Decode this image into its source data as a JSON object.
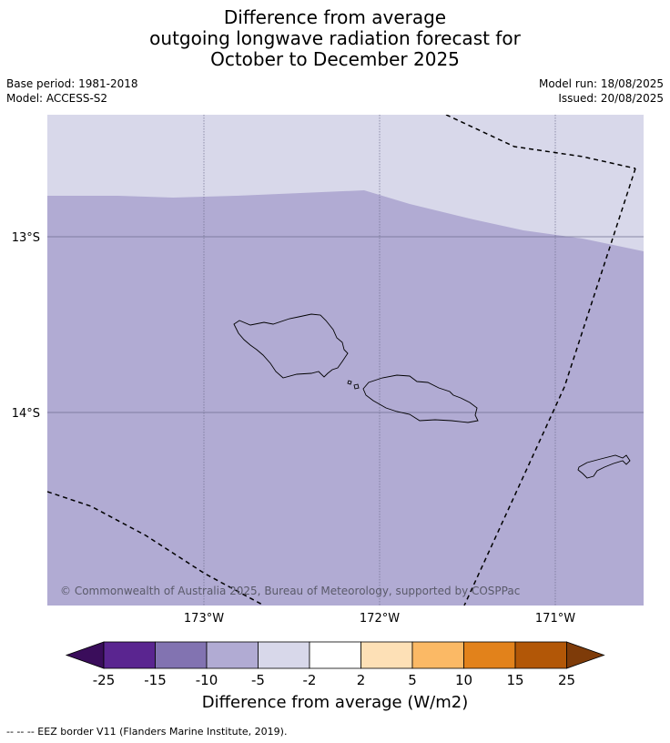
{
  "title_lines": [
    "Difference from average",
    "outgoing longwave radiation forecast for",
    "October to December 2025"
  ],
  "meta": {
    "base_period": "Base period: 1981-2018",
    "model": "Model: ACCESS-S2",
    "model_run": "Model run: 18/08/2025",
    "issued": "Issued: 20/08/2025"
  },
  "map": {
    "lat_labels": [
      "13°S",
      "14°S"
    ],
    "lon_labels": [
      "173°W",
      "172°W",
      "171°W"
    ],
    "copyright": "© Commonwealth of Australia 2025, Bureau of Meteorology, supported by COSPPac",
    "colors": {
      "band_neg5_neg2": "#d8d8ea",
      "band_neg10_neg5": "#b1abd3"
    }
  },
  "colorbar": {
    "ticks": [
      "-25",
      "-15",
      "-10",
      "-5",
      "-2",
      "2",
      "5",
      "10",
      "15",
      "25"
    ],
    "colors": [
      "#5a2590",
      "#8273b1",
      "#b1abd3",
      "#d8d8ea",
      "#ffffff",
      "#fde0b6",
      "#fbb965",
      "#e2821b",
      "#b25707"
    ],
    "under_color": "#3a0d5b",
    "over_color": "#7e3b09",
    "label": "Difference from average (W/m2)"
  },
  "footnote": "-- -- -- EEZ border V11 (Flanders Marine Institute, 2019)."
}
